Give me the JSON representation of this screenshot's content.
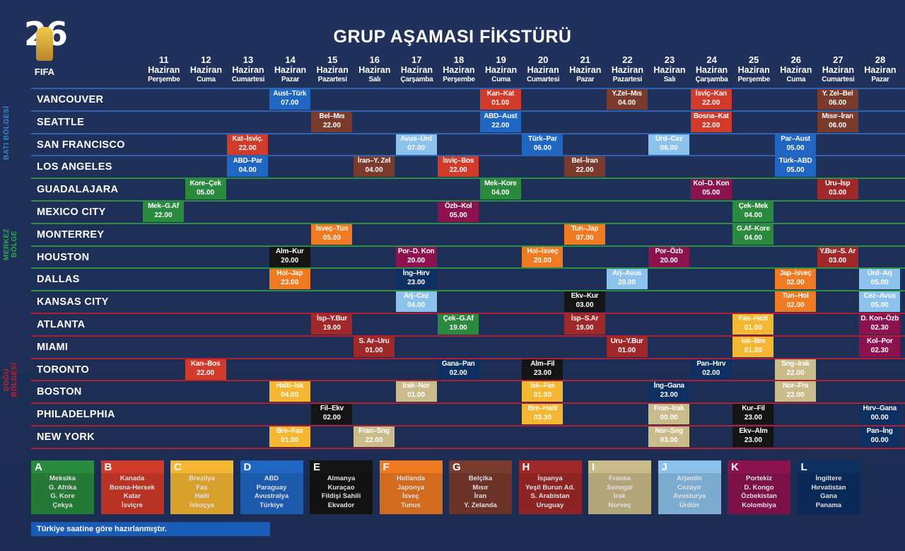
{
  "title": "GRUP AŞAMASI FİKSTÜRÜ",
  "logo": {
    "number": "26",
    "text": "FIFA"
  },
  "colors": {
    "A": "#2a8a3e",
    "B": "#d23a2a",
    "C": "#f5b731",
    "D": "#2067c4",
    "E": "#141414",
    "F": "#f07a22",
    "G": "#7a3a2c",
    "H": "#a02828",
    "I": "#c9bb8a",
    "J": "#8cc3ec",
    "K": "#8c1350",
    "L": "#0d2f62"
  },
  "dates": [
    {
      "day": "11",
      "month": "Haziran",
      "weekday": "Perşembe"
    },
    {
      "day": "12",
      "month": "Haziran",
      "weekday": "Cuma"
    },
    {
      "day": "13",
      "month": "Haziran",
      "weekday": "Cumartesi"
    },
    {
      "day": "14",
      "month": "Haziran",
      "weekday": "Pazar"
    },
    {
      "day": "15",
      "month": "Haziran",
      "weekday": "Pazartesi"
    },
    {
      "day": "16",
      "month": "Haziran",
      "weekday": "Salı"
    },
    {
      "day": "17",
      "month": "Haziran",
      "weekday": "Çarşamba"
    },
    {
      "day": "18",
      "month": "Haziran",
      "weekday": "Perşembe"
    },
    {
      "day": "19",
      "month": "Haziran",
      "weekday": "Cuma"
    },
    {
      "day": "20",
      "month": "Haziran",
      "weekday": "Cumartesi"
    },
    {
      "day": "21",
      "month": "Haziran",
      "weekday": "Pazar"
    },
    {
      "day": "22",
      "month": "Haziran",
      "weekday": "Pazartesi"
    },
    {
      "day": "23",
      "month": "Haziran",
      "weekday": "Salı"
    },
    {
      "day": "24",
      "month": "Haziran",
      "weekday": "Çarşamba"
    },
    {
      "day": "25",
      "month": "Haziran",
      "weekday": "Perşembe"
    },
    {
      "day": "26",
      "month": "Haziran",
      "weekday": "Cuma"
    },
    {
      "day": "27",
      "month": "Haziran",
      "weekday": "Cumartesi"
    },
    {
      "day": "28",
      "month": "Haziran",
      "weekday": "Pazar"
    }
  ],
  "regions": [
    {
      "label": "BATI BÖLGESİ",
      "color": "#2f86d8"
    },
    {
      "label": "MERKEZ BÖLGE",
      "color": "#2fa84a"
    },
    {
      "label": "DOĞU BÖLGESİ",
      "color": "#c8202e"
    }
  ],
  "cities": [
    {
      "name": "VANCOUVER",
      "region": 0,
      "matches": [
        {
          "d": 3,
          "g": "D",
          "t": "Aust–Türk",
          "h": "07.00"
        },
        {
          "d": 8,
          "g": "B",
          "t": "Kan–Kat",
          "h": "01.00"
        },
        {
          "d": 11,
          "g": "G",
          "t": "Y.Zel–Mıs",
          "h": "04.00"
        },
        {
          "d": 13,
          "g": "B",
          "t": "İsviç–Kan",
          "h": "22.00"
        },
        {
          "d": 16,
          "g": "G",
          "t": "Y. Zel–Bel",
          "h": "06.00"
        }
      ]
    },
    {
      "name": "SEATTLE",
      "region": 0,
      "matches": [
        {
          "d": 4,
          "g": "G",
          "t": "Bel–Mıs",
          "h": "22.00"
        },
        {
          "d": 8,
          "g": "D",
          "t": "ABD–Aust",
          "h": "22.00"
        },
        {
          "d": 13,
          "g": "B",
          "t": "Bosna–Kat",
          "h": "22.00"
        },
        {
          "d": 16,
          "g": "G",
          "t": "Mısır–İran",
          "h": "06.00"
        }
      ]
    },
    {
      "name": "SAN FRANCISCO",
      "region": 0,
      "matches": [
        {
          "d": 2,
          "g": "B",
          "t": "Kat–İsviç.",
          "h": "22.00"
        },
        {
          "d": 6,
          "g": "J",
          "t": "Avus–Ürd",
          "h": "07.00"
        },
        {
          "d": 9,
          "g": "D",
          "t": "Türk–Par",
          "h": "06.00"
        },
        {
          "d": 12,
          "g": "J",
          "t": "Ürd–Cez",
          "h": "06.00"
        },
        {
          "d": 15,
          "g": "D",
          "t": "Par–Aust",
          "h": "05.00"
        }
      ]
    },
    {
      "name": "LOS ANGELES",
      "region": 0,
      "matches": [
        {
          "d": 2,
          "g": "D",
          "t": "ABD–Par",
          "h": "04.00"
        },
        {
          "d": 5,
          "g": "G",
          "t": "İran–Y. Zel",
          "h": "04.00"
        },
        {
          "d": 7,
          "g": "B",
          "t": "İsviç–Bos",
          "h": "22.00"
        },
        {
          "d": 10,
          "g": "G",
          "t": "Bel–İran",
          "h": "22.00"
        },
        {
          "d": 15,
          "g": "D",
          "t": "Türk–ABD",
          "h": "05.00"
        }
      ]
    },
    {
      "name": "GUADALAJARA",
      "region": 1,
      "matches": [
        {
          "d": 1,
          "g": "A",
          "t": "Kore–Çek",
          "h": "05.00"
        },
        {
          "d": 8,
          "g": "A",
          "t": "Mek–Kore",
          "h": "04.00"
        },
        {
          "d": 13,
          "g": "K",
          "t": "Kol–D. Kon",
          "h": "05.00"
        },
        {
          "d": 16,
          "g": "H",
          "t": "Uru–İsp",
          "h": "03.00"
        }
      ]
    },
    {
      "name": "MEXICO CITY",
      "region": 1,
      "matches": [
        {
          "d": 0,
          "g": "A",
          "t": "Mek–G.Af",
          "h": "22.00"
        },
        {
          "d": 7,
          "g": "K",
          "t": "Özb–Kol",
          "h": "05.00"
        },
        {
          "d": 14,
          "g": "A",
          "t": "Çek–Mek",
          "h": "04.00"
        }
      ]
    },
    {
      "name": "MONTERREY",
      "region": 1,
      "matches": [
        {
          "d": 4,
          "g": "F",
          "t": "İsveç–Tun",
          "h": "05.00"
        },
        {
          "d": 10,
          "g": "F",
          "t": "Tun–Jap",
          "h": "07.00"
        },
        {
          "d": 14,
          "g": "A",
          "t": "G.Af–Kore",
          "h": "04.00"
        }
      ]
    },
    {
      "name": "HOUSTON",
      "region": 1,
      "matches": [
        {
          "d": 3,
          "g": "E",
          "t": "Alm–Kur",
          "h": "20.00"
        },
        {
          "d": 6,
          "g": "K",
          "t": "Por–D. Kon",
          "h": "20.00"
        },
        {
          "d": 9,
          "g": "F",
          "t": "Hol–İsveç",
          "h": "20.00"
        },
        {
          "d": 12,
          "g": "K",
          "t": "Por–Özb",
          "h": "20.00"
        },
        {
          "d": 16,
          "g": "H",
          "t": "Y.Bur–S. Ar",
          "h": "03.00"
        }
      ]
    },
    {
      "name": "DALLAS",
      "region": 1,
      "matches": [
        {
          "d": 3,
          "g": "F",
          "t": "Hol–Jap",
          "h": "23.00"
        },
        {
          "d": 6,
          "g": "L",
          "t": "İng–Hırv",
          "h": "23.00"
        },
        {
          "d": 11,
          "g": "J",
          "t": "Arj–Avus",
          "h": "20.00"
        },
        {
          "d": 15,
          "g": "F",
          "t": "Jap–İsveç",
          "h": "02.00"
        },
        {
          "d": 17,
          "g": "J",
          "t": "Ürd–Arj",
          "h": "05.00"
        }
      ]
    },
    {
      "name": "KANSAS CITY",
      "region": 1,
      "matches": [
        {
          "d": 6,
          "g": "J",
          "t": "Arj–Cez",
          "h": "04.00"
        },
        {
          "d": 10,
          "g": "E",
          "t": "Ekv–Kur",
          "h": "03.00"
        },
        {
          "d": 15,
          "g": "F",
          "t": "Tun–Hol",
          "h": "02.00"
        },
        {
          "d": 17,
          "g": "J",
          "t": "Cez–Avus",
          "h": "05.00"
        }
      ]
    },
    {
      "name": "ATLANTA",
      "region": 2,
      "matches": [
        {
          "d": 4,
          "g": "H",
          "t": "İsp–Y.Bur",
          "h": "19.00"
        },
        {
          "d": 7,
          "g": "A",
          "t": "Çek–G.Af",
          "h": "19.00"
        },
        {
          "d": 10,
          "g": "H",
          "t": "İsp–S.Ar",
          "h": "19.00"
        },
        {
          "d": 14,
          "g": "C",
          "t": "Fas–Haiti",
          "h": "01.00"
        },
        {
          "d": 17,
          "g": "K",
          "t": "D. Kon–Özb",
          "h": "02.30"
        }
      ]
    },
    {
      "name": "MIAMI",
      "region": 2,
      "matches": [
        {
          "d": 5,
          "g": "H",
          "t": "S. Ar–Uru",
          "h": "01.00"
        },
        {
          "d": 11,
          "g": "H",
          "t": "Uru–Y.Bur",
          "h": "01.00"
        },
        {
          "d": 14,
          "g": "C",
          "t": "İsk–Bre",
          "h": "01.00"
        },
        {
          "d": 17,
          "g": "K",
          "t": "Kol–Por",
          "h": "02.30"
        }
      ]
    },
    {
      "name": "TORONTO",
      "region": 2,
      "matches": [
        {
          "d": 1,
          "g": "B",
          "t": "Kan–Bos",
          "h": "22.00"
        },
        {
          "d": 7,
          "g": "L",
          "t": "Gana–Pan",
          "h": "02.00"
        },
        {
          "d": 9,
          "g": "E",
          "t": "Alm–Fil",
          "h": "23.00"
        },
        {
          "d": 13,
          "g": "L",
          "t": "Pan–Hırv",
          "h": "02.00"
        },
        {
          "d": 15,
          "g": "I",
          "t": "Sng–Irak",
          "h": "22.00"
        }
      ]
    },
    {
      "name": "BOSTON",
      "region": 2,
      "matches": [
        {
          "d": 3,
          "g": "C",
          "t": "Haiti–İsk",
          "h": "04.00"
        },
        {
          "d": 6,
          "g": "I",
          "t": "Irak–Nor",
          "h": "01.00"
        },
        {
          "d": 9,
          "g": "C",
          "t": "İsk–Fas",
          "h": "01.00"
        },
        {
          "d": 12,
          "g": "L",
          "t": "İng–Gana",
          "h": "23.00"
        },
        {
          "d": 15,
          "g": "I",
          "t": "Nor–Fra",
          "h": "22.00"
        }
      ]
    },
    {
      "name": "PHILADELPHIA",
      "region": 2,
      "matches": [
        {
          "d": 4,
          "g": "E",
          "t": "Fil–Ekv",
          "h": "02.00"
        },
        {
          "d": 9,
          "g": "C",
          "t": "Bre–Haiti",
          "h": "03.30"
        },
        {
          "d": 12,
          "g": "I",
          "t": "Fran–Irak",
          "h": "00.00"
        },
        {
          "d": 14,
          "g": "E",
          "t": "Kur–Fil",
          "h": "23.00"
        },
        {
          "d": 17,
          "g": "L",
          "t": "Hırv–Gana",
          "h": "00.00"
        }
      ]
    },
    {
      "name": "NEW YORK",
      "region": 2,
      "matches": [
        {
          "d": 3,
          "g": "C",
          "t": "Bre–Fas",
          "h": "01.00"
        },
        {
          "d": 5,
          "g": "I",
          "t": "Fran–Sng",
          "h": "22.00"
        },
        {
          "d": 12,
          "g": "I",
          "t": "Nor–Sng",
          "h": "03.00"
        },
        {
          "d": 14,
          "g": "E",
          "t": "Ekv–Alm",
          "h": "23.00"
        },
        {
          "d": 17,
          "g": "L",
          "t": "Pan–İng",
          "h": "00.00"
        }
      ]
    }
  ],
  "groups": [
    {
      "letter": "A",
      "teams": [
        "Meksika",
        "G. Afrika",
        "G. Kore",
        "Çekya"
      ]
    },
    {
      "letter": "B",
      "teams": [
        "Kanada",
        "Bosna-Hersek",
        "Katar",
        "İsviçre"
      ]
    },
    {
      "letter": "C",
      "teams": [
        "Brezilya",
        "Fas",
        "Haiti",
        "İskoçya"
      ]
    },
    {
      "letter": "D",
      "teams": [
        "ABD",
        "Paraguay",
        "Avustralya",
        "Türkiye"
      ]
    },
    {
      "letter": "E",
      "teams": [
        "Almanya",
        "Kuraçao",
        "Fildişi Sahili",
        "Ekvador"
      ]
    },
    {
      "letter": "F",
      "teams": [
        "Hollanda",
        "Japonya",
        "İsveç",
        "Tunus"
      ]
    },
    {
      "letter": "G",
      "teams": [
        "Belçika",
        "Mısır",
        "İran",
        "Y. Zelanda"
      ]
    },
    {
      "letter": "H",
      "teams": [
        "İspanya",
        "Yeşil Burun Ad.",
        "S. Arabistan",
        "Uruguay"
      ]
    },
    {
      "letter": "I",
      "teams": [
        "Fransa",
        "Senegal",
        "Irak",
        "Norveç"
      ]
    },
    {
      "letter": "J",
      "teams": [
        "Arjantin",
        "Cezayir",
        "Avusturya",
        "Ürdün"
      ]
    },
    {
      "letter": "K",
      "teams": [
        "Portekiz",
        "D. Kongo",
        "Özbekistan",
        "Kolombiya"
      ]
    },
    {
      "letter": "L",
      "teams": [
        "İngiltere",
        "Hırvatistan",
        "Gana",
        "Panama"
      ]
    }
  ],
  "note": "Türkiye saatine göre hazırlanmıştır."
}
